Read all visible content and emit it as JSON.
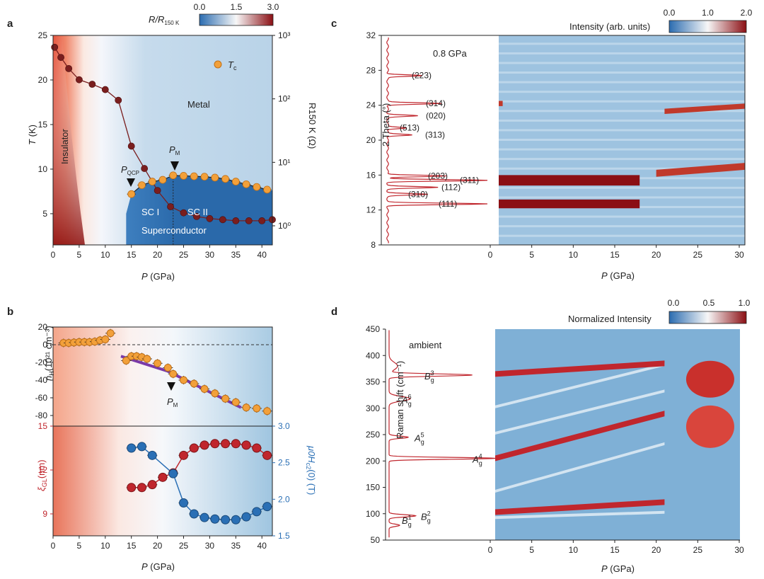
{
  "chart_data": [
    {
      "panel": "a",
      "type": "heatmap",
      "colorbar": {
        "label": "R/R150 K",
        "ticks": [
          "0.0",
          "1.5",
          "3.0"
        ]
      },
      "xaxis": {
        "label": "P",
        "unit": "(GPa)",
        "range": [
          0,
          42
        ],
        "ticks": [
          0,
          5,
          10,
          15,
          20,
          25,
          30,
          35,
          40
        ]
      },
      "yaxis_left": {
        "label": "T",
        "unit": "(K)",
        "range": [
          1.5,
          25
        ],
        "ticks": [
          5,
          10,
          15,
          20,
          25
        ]
      },
      "yaxis_right": {
        "label": "R150 K (Ω)",
        "log": true,
        "range": [
          0.5,
          1000
        ],
        "ticks": [
          "10⁰",
          "10¹",
          "10²",
          "10³"
        ],
        "tick_values": [
          1,
          10,
          100,
          1000
        ]
      },
      "regions": {
        "insulator": "Insulator",
        "metal": "Metal",
        "sc": "Superconductor",
        "sc1": "SC I",
        "sc2": "SC II"
      },
      "markers": {
        "qcp": "P",
        "qcp_sub": "QCP",
        "m": "P",
        "m_sub": "M"
      },
      "legend": {
        "label": "T",
        "sub": "c"
      },
      "series": [
        {
          "name": "R150K",
          "color": "#7a1e1e",
          "x": [
            0.3,
            1.5,
            3,
            5,
            7.5,
            10,
            12.5,
            15,
            17.5,
            20,
            22.5,
            25,
            27.5,
            30,
            32.5,
            35,
            37.5,
            40,
            42
          ],
          "y": [
            650,
            450,
            300,
            200,
            170,
            140,
            95,
            18,
            8,
            3.6,
            2,
            1.6,
            1.4,
            1.3,
            1.25,
            1.2,
            1.2,
            1.2,
            1.25
          ]
        },
        {
          "name": "Tc",
          "color": "#f2a03a",
          "x": [
            15,
            17,
            19,
            21,
            23,
            25,
            27,
            29,
            31,
            33,
            35,
            37,
            39,
            41
          ],
          "y": [
            7.2,
            8.2,
            8.6,
            8.8,
            9.3,
            9.25,
            9.2,
            9.15,
            9.05,
            8.9,
            8.6,
            8.3,
            8.0,
            7.7
          ]
        }
      ]
    },
    {
      "panel": "b-top",
      "type": "scatter",
      "xaxis": {
        "range": [
          0,
          42
        ],
        "ticks": [
          0,
          5,
          10,
          15,
          20,
          25,
          30,
          35,
          40
        ]
      },
      "yaxis": {
        "label": "n",
        "sub": "H",
        "unit": "(10²¹ cm⁻³)",
        "range": [
          -92,
          20
        ],
        "ticks": [
          20,
          0,
          -20,
          -40,
          -60,
          -80
        ]
      },
      "marker": {
        "label": "P",
        "sub": "M"
      },
      "series": [
        {
          "name": "nH",
          "color": "#f2a03a",
          "x": [
            2,
            3,
            4,
            5,
            6,
            7,
            8,
            9,
            10,
            11,
            14,
            15,
            16,
            17,
            18,
            20,
            22,
            23,
            25,
            27,
            29,
            31,
            33,
            35,
            37,
            39,
            41
          ],
          "y": [
            2,
            2,
            2.5,
            3,
            3,
            3,
            3.5,
            5,
            6,
            13,
            -18,
            -13,
            -13,
            -14,
            -16,
            -21,
            -26,
            -33,
            -40,
            -44,
            -50,
            -55,
            -61,
            -65,
            -71,
            -72,
            -75
          ]
        },
        {
          "name": "fit",
          "color": "#7a3aa8",
          "x": [
            13,
            22,
            36
          ],
          "y": [
            -13,
            -30,
            -71
          ]
        }
      ]
    },
    {
      "panel": "b-bottom",
      "type": "line",
      "xaxis": {
        "label": "P",
        "unit": "(GPa)",
        "range": [
          0,
          42
        ],
        "ticks": [
          0,
          5,
          10,
          15,
          20,
          25,
          30,
          35,
          40
        ]
      },
      "yaxis_left": {
        "label": "ξ",
        "sub": "GL",
        "unit": "(nm)",
        "range": [
          7.5,
          15
        ],
        "ticks": [
          9,
          12,
          15
        ],
        "color": "#c0262d"
      },
      "yaxis_right": {
        "label": "μ0H",
        "sub": "c2",
        "unit": "(0) (T)",
        "range": [
          1.5,
          3.0
        ],
        "ticks": [
          "1.5",
          "2.0",
          "2.5",
          "3.0"
        ],
        "tick_values": [
          1.5,
          2.0,
          2.5,
          3.0
        ],
        "color": "#2a6fb5"
      },
      "series": [
        {
          "name": "ξGL",
          "color": "#c0262d",
          "x": [
            15,
            17,
            19,
            21,
            23,
            25,
            27,
            29,
            31,
            33,
            35,
            37,
            39,
            41
          ],
          "y": [
            10.8,
            10.8,
            11.0,
            11.5,
            11.8,
            13.0,
            13.5,
            13.7,
            13.8,
            13.8,
            13.8,
            13.7,
            13.5,
            13.0
          ]
        },
        {
          "name": "μ0Hc2",
          "color": "#2a6fb5",
          "x": [
            15,
            17,
            19,
            23,
            25,
            27,
            29,
            31,
            33,
            35,
            37,
            39,
            41
          ],
          "y": [
            2.7,
            2.72,
            2.6,
            2.35,
            1.95,
            1.8,
            1.75,
            1.73,
            1.72,
            1.72,
            1.76,
            1.83,
            1.9
          ]
        }
      ]
    },
    {
      "panel": "c",
      "type": "heatmap",
      "colorbar": {
        "label": "Intensity (arb. units)",
        "ticks": [
          "0.0",
          "1.0",
          "2.0"
        ]
      },
      "xaxis": {
        "label": "P",
        "unit": "(GPa)",
        "range": [
          0,
          31
        ],
        "ticks": [
          0,
          5,
          10,
          15,
          20,
          25,
          30
        ]
      },
      "yaxis": {
        "label": "2 Theta (°)",
        "range": [
          8,
          32
        ],
        "ticks": [
          8,
          12,
          16,
          20,
          24,
          28,
          32
        ]
      },
      "profile_label": "0.8 GPa",
      "peaks": [
        {
          "label": "(223)",
          "y": 27.4
        },
        {
          "label": "(314)",
          "y": 24.2
        },
        {
          "label": "(020)",
          "y": 22.8
        },
        {
          "label": "(513)",
          "y": 21.4
        },
        {
          "label": "(313)",
          "y": 20.6
        },
        {
          "label": "(203)",
          "y": 15.9
        },
        {
          "label": "(311)",
          "y": 15.4
        },
        {
          "label": "(112)",
          "y": 14.6
        },
        {
          "label": "(310)",
          "y": 13.8
        },
        {
          "label": "(111)",
          "y": 12.7
        }
      ],
      "bands": [
        {
          "y0": 12.7,
          "y1": 12.7,
          "w": 0.5,
          "intensity": 2.0,
          "p_end": 18
        },
        {
          "y0": 15.4,
          "y1": 15.4,
          "w": 0.6,
          "intensity": 2.0,
          "p_end": 18
        },
        {
          "y0": 16.2,
          "y1": 17.0,
          "w": 0.4,
          "intensity": 1.6,
          "p_start": 20
        },
        {
          "y0": 24.2,
          "y1": 24.2,
          "w": 0.3,
          "intensity": 1.6,
          "p_end": 1.5
        },
        {
          "y0": 23.3,
          "y1": 23.9,
          "w": 0.3,
          "intensity": 1.5,
          "p_start": 21
        }
      ]
    },
    {
      "panel": "d",
      "type": "heatmap",
      "colorbar": {
        "label": "Normalized Intensity",
        "ticks": [
          "0.0",
          "0.5",
          "1.0"
        ]
      },
      "xaxis": {
        "label": "P",
        "unit": "(GPa)",
        "range": [
          0,
          30.5
        ],
        "ticks": [
          0,
          5,
          10,
          15,
          20,
          25,
          30
        ]
      },
      "yaxis": {
        "label": "Raman shift (cm⁻¹)",
        "range": [
          50,
          450
        ],
        "ticks": [
          50,
          100,
          150,
          200,
          250,
          300,
          350,
          400,
          450
        ]
      },
      "profile_label": "ambient",
      "modes": [
        {
          "label": "B",
          "sup": "3",
          "sub": "g",
          "y": 363
        },
        {
          "label": "A",
          "sup": "6",
          "sub": "g",
          "y": 318
        },
        {
          "label": "A",
          "sup": "5",
          "sub": "g",
          "y": 245
        },
        {
          "label": "A",
          "sup": "4",
          "sub": "g",
          "y": 205
        },
        {
          "label": "B",
          "sup": "2",
          "sub": "g",
          "y": 96
        },
        {
          "label": "B",
          "sup": "1",
          "sub": "g",
          "y": 78
        }
      ],
      "bands": [
        {
          "y0": 365,
          "y1": 385,
          "p_end": 21,
          "intensity": 1.0
        },
        {
          "y0": 205,
          "y1": 290,
          "p_end": 21,
          "intensity": 0.9
        },
        {
          "y0": 103,
          "y1": 122,
          "p_end": 21,
          "intensity": 0.9
        }
      ]
    }
  ],
  "panels": {
    "a": "a",
    "b": "b",
    "c": "c",
    "d": "d"
  }
}
